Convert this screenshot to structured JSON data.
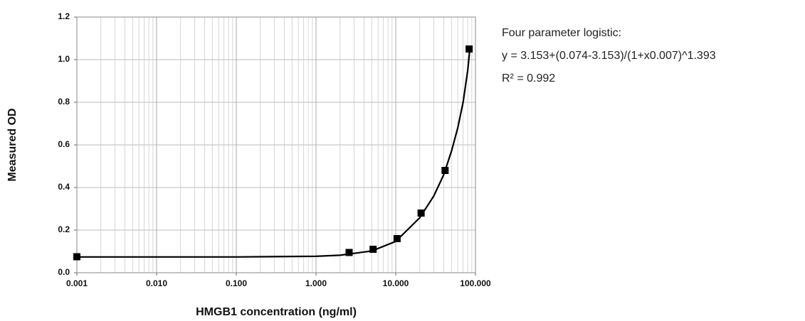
{
  "chart_data": {
    "type": "scatter",
    "xlabel": "HMGB1 concentration (ng/ml)",
    "ylabel": "Measured OD",
    "annotations": [
      "Four parameter logistic:",
      "y = 3.153+(0.074-3.153)/(1+x0.007)^1.393",
      "R² = 0.992"
    ],
    "xscale": "log",
    "grid": true,
    "minor_grid": true,
    "xlim": [
      0.001,
      100
    ],
    "ylim": [
      0,
      1.2
    ],
    "xticks": [
      0.001,
      {
        "value": 0.01,
        "label": "0.010"
      },
      {
        "value": 0.1,
        "label": "0.100"
      },
      {
        "value": 1,
        "label": "1.000"
      },
      {
        "value": 10,
        "label": "10.000"
      },
      {
        "value": 100,
        "label": "100.000"
      }
    ],
    "yticks": [
      {
        "value": 0,
        "label": "0.0"
      },
      0.2,
      0.4,
      0.6,
      0.8,
      {
        "value": 1,
        "label": "1.0"
      },
      1.2
    ],
    "series": [
      {
        "color": "#000000",
        "marker": "square",
        "x": [
          0.001,
          2.6,
          5.2,
          10.4,
          20.8,
          41.6,
          83.3
        ],
        "values": [
          0.075,
          0.095,
          0.11,
          0.16,
          0.28,
          0.48,
          1.05
        ]
      },
      {
        "color": "#000000",
        "line": true,
        "x": [
          0.001,
          0.01,
          0.1,
          1,
          2,
          5,
          10,
          20,
          30,
          40,
          50,
          60,
          70,
          80,
          85
        ],
        "values": [
          0.074,
          0.074,
          0.074,
          0.077,
          0.082,
          0.102,
          0.147,
          0.258,
          0.36,
          0.46,
          0.57,
          0.68,
          0.8,
          0.95,
          1.05
        ]
      }
    ]
  }
}
